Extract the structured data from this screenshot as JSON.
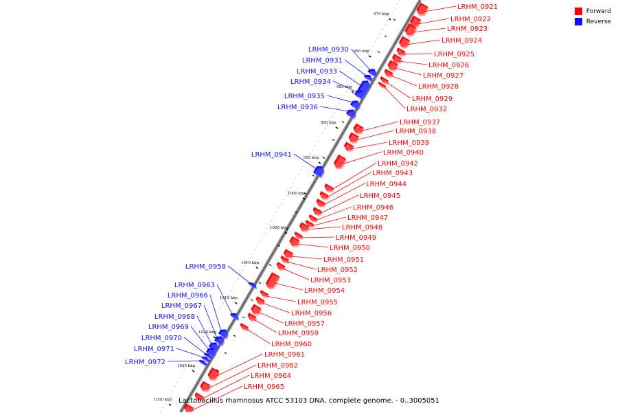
{
  "legend": {
    "forward_label": "Forward",
    "reverse_label": "Reverse",
    "forward_color": "#ff0000",
    "reverse_color": "#1010ff"
  },
  "caption": "Lactobacillus rhamnosus ATCC 53103 DNA, complete genome. - 0..3005051",
  "ticks": [
    "975 kbp",
    "980 kbp",
    "985 kbp",
    "990 kbp",
    "995 kbp",
    "1000 kbp",
    "1005 kbp",
    "1010 kbp",
    "1015 kbp",
    "1020 kbp",
    "1025 kbp",
    "1030 kbp"
  ],
  "forward_genes": [
    "LRHM_0921",
    "LRHM_0922",
    "LRHM_0923",
    "LRHM_0924",
    "LRHM_0925",
    "LRHM_0926",
    "LRHM_0927",
    "LRHM_0928",
    "LRHM_0929",
    "LRHM_0932",
    "LRHM_0937",
    "LRHM_0938",
    "LRHM_0939",
    "LRHM_0940",
    "LRHM_0942",
    "LRHM_0943",
    "LRHM_0944",
    "LRHM_0945",
    "LRHM_0946",
    "LRHM_0947",
    "LRHM_0948",
    "LRHM_0949",
    "LRHM_0950",
    "LRHM_0951",
    "LRHM_0952",
    "LRHM_0953",
    "LRHM_0954",
    "LRHM_0955",
    "LRHM_0956",
    "LRHM_0957",
    "LRHM_0959",
    "LRHM_0960",
    "LRHM_0961",
    "LRHM_0962",
    "LRHM_0964",
    "LRHM_0965"
  ],
  "reverse_genes": [
    "LRHM_0930",
    "LRHM_0931",
    "LRHM_0933",
    "LRHM_0934",
    "LRHM_0935",
    "LRHM_0936",
    "LRHM_0941",
    "LRHM_0958",
    "LRHM_0963",
    "LRHM_0966",
    "LRHM_0967",
    "LRHM_0968",
    "LRHM_0969",
    "LRHM_0970",
    "LRHM_0971",
    "LRHM_0972"
  ]
}
